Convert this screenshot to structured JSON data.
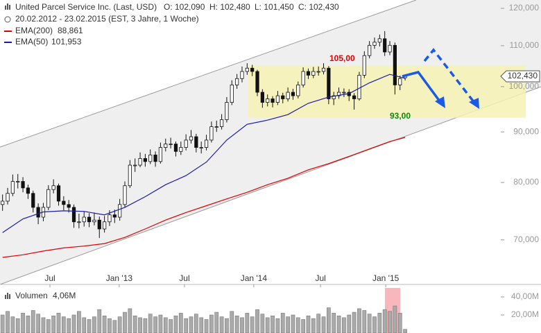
{
  "chart_data": {
    "type": "candlestick",
    "title": "United Parcel Service Inc. (Last, USD)",
    "ohlc_labels": [
      "O: 102,090",
      "H: 102,480",
      "L: 101,450",
      "C: 102,430"
    ],
    "subtitle": "20.02.2012 - 23.02.2015 (EST, 3 Jahre, 1 Woche)",
    "log_scale": true,
    "ylim": [
      63.1,
      122.35
    ],
    "yticks": [
      {
        "value": 120,
        "label": "120,000"
      },
      {
        "value": 110,
        "label": "110,000"
      },
      {
        "value": 100,
        "label": "100,000"
      },
      {
        "value": 90,
        "label": "90,000"
      },
      {
        "value": 80,
        "label": "80,000"
      },
      {
        "value": 70,
        "label": "70,000"
      }
    ],
    "xlim": [
      -0.5,
      97.5
    ],
    "xticks": [
      {
        "value": 9.3,
        "label": "Jul"
      },
      {
        "value": 22.9,
        "label": "Jan '13"
      },
      {
        "value": 35.7,
        "label": "Jul"
      },
      {
        "value": 49.3,
        "label": "Jan '14"
      },
      {
        "value": 62.4,
        "label": "Jul"
      },
      {
        "value": 75.2,
        "label": "Jan '15"
      }
    ],
    "current_price": {
      "value": 102.43,
      "label": "102,430"
    },
    "candles": [
      [
        76,
        77.8,
        74.9,
        76.6
      ],
      [
        76.6,
        79,
        76,
        78
      ],
      [
        78,
        81.5,
        77.5,
        80.2
      ],
      [
        80.2,
        81.6,
        78.9,
        80.2
      ],
      [
        80.2,
        81,
        78.2,
        79
      ],
      [
        79,
        79.6,
        77,
        78
      ],
      [
        78,
        78.5,
        74.6,
        75.5
      ],
      [
        75.5,
        76.2,
        72.6,
        73.8
      ],
      [
        73.8,
        76.3,
        73.1,
        75.5
      ],
      [
        75.5,
        79.5,
        75,
        78.7
      ],
      [
        78.7,
        80.6,
        78,
        79.4
      ],
      [
        79.4,
        79.8,
        75.8,
        76.6
      ],
      [
        76.6,
        77.5,
        75,
        76
      ],
      [
        76,
        76.8,
        74.6,
        75.5
      ],
      [
        75.5,
        76,
        72,
        73
      ],
      [
        73,
        74.4,
        71.9,
        73
      ],
      [
        73,
        74.8,
        72.2,
        73.8
      ],
      [
        73.8,
        74.5,
        72.1,
        73
      ],
      [
        73,
        74.6,
        72.4,
        73.3
      ],
      [
        73.3,
        73.9,
        70.3,
        71.8
      ],
      [
        71.8,
        74,
        71.2,
        73
      ],
      [
        73,
        75,
        72.3,
        74.2
      ],
      [
        74.2,
        75.1,
        72.8,
        73.8
      ],
      [
        73.8,
        77,
        73.2,
        76
      ],
      [
        76,
        80.2,
        75.5,
        79.4
      ],
      [
        79.4,
        84.3,
        79,
        83.3
      ],
      [
        83.3,
        84.6,
        82,
        83.3
      ],
      [
        83.3,
        85.8,
        82.9,
        84.6
      ],
      [
        84.6,
        85.5,
        83,
        84
      ],
      [
        84,
        86.4,
        83.5,
        85.3
      ],
      [
        85.3,
        86,
        83,
        84
      ],
      [
        84,
        87.8,
        83.6,
        86.8
      ],
      [
        86.8,
        88.6,
        86,
        87.5
      ],
      [
        87.5,
        88.8,
        86.6,
        87.5
      ],
      [
        87.5,
        88,
        85,
        86
      ],
      [
        86,
        88,
        85.3,
        86.8
      ],
      [
        86.8,
        89.5,
        86.2,
        88.3
      ],
      [
        88.3,
        90.4,
        87.6,
        89
      ],
      [
        89,
        89.6,
        85.8,
        86.8
      ],
      [
        86.8,
        88,
        85.6,
        86.8
      ],
      [
        86.8,
        89.4,
        86.2,
        88.3
      ],
      [
        88.3,
        92.2,
        87.8,
        91.1
      ],
      [
        91.1,
        92.4,
        90,
        91.1
      ],
      [
        91.1,
        93.8,
        90.5,
        92.6
      ],
      [
        92.6,
        97.6,
        92,
        96.4
      ],
      [
        96.4,
        101.5,
        95.8,
        100.4
      ],
      [
        100.4,
        103,
        99.5,
        101.9
      ],
      [
        101.9,
        104.8,
        101,
        103.6
      ],
      [
        103.6,
        105.6,
        102.8,
        104.4
      ],
      [
        104.4,
        105.2,
        102.5,
        103.6
      ],
      [
        103.6,
        104,
        97.8,
        98.7
      ],
      [
        98.7,
        99.4,
        95.2,
        96.4
      ],
      [
        96.4,
        98.2,
        95.5,
        97.2
      ],
      [
        97.2,
        97.8,
        95.3,
        96.4
      ],
      [
        96.4,
        99,
        95.8,
        97.9
      ],
      [
        97.9,
        98.6,
        96.2,
        97.2
      ],
      [
        97.2,
        99.8,
        96.6,
        98.7
      ],
      [
        98.7,
        99.5,
        97,
        97.9
      ],
      [
        97.9,
        101.2,
        97.3,
        100.4
      ],
      [
        100.4,
        104.6,
        99.8,
        103.6
      ],
      [
        103.6,
        104.3,
        101.8,
        102.7
      ],
      [
        102.7,
        104.7,
        102,
        103.6
      ],
      [
        103.6,
        104.8,
        102.6,
        103.6
      ],
      [
        103.6,
        105.6,
        102.9,
        104.4
      ],
      [
        104.4,
        104.9,
        96,
        97.2
      ],
      [
        97.2,
        98.8,
        95.8,
        97.9
      ],
      [
        97.9,
        99.8,
        97.2,
        98.7
      ],
      [
        98.7,
        99.6,
        97.6,
        98.7
      ],
      [
        98.7,
        99.4,
        96.7,
        97.9
      ],
      [
        97.9,
        98.5,
        94.8,
        97.2
      ],
      [
        97.2,
        103.5,
        96.8,
        102.7
      ],
      [
        102.7,
        108.6,
        102,
        107.5
      ],
      [
        107.5,
        111.2,
        106.8,
        110.1
      ],
      [
        110.1,
        112.1,
        109.2,
        110.9
      ],
      [
        110.9,
        112.9,
        109.8,
        111.8
      ],
      [
        111.8,
        113.8,
        107.4,
        108.4
      ],
      [
        108.4,
        111.2,
        107.6,
        110.1
      ],
      [
        110.1,
        110.8,
        98.2,
        100.4
      ],
      [
        100.4,
        102.6,
        99.2,
        101.9
      ],
      [
        102.09,
        102.48,
        101.45,
        102.43
      ]
    ],
    "series": [
      {
        "name": "EMA(200)",
        "last_label": "88,861",
        "color": "#e00000",
        "x": [
          0,
          4,
          8,
          12,
          16,
          20,
          24,
          28,
          32,
          36,
          40,
          44,
          48,
          52,
          56,
          60,
          64,
          68,
          72,
          76,
          79
        ],
        "values": [
          67.2,
          67.6,
          68.2,
          68.7,
          69.0,
          69.4,
          70.4,
          71.8,
          73.3,
          74.6,
          75.8,
          77.0,
          78.2,
          79.6,
          80.8,
          82.4,
          83.6,
          85.0,
          86.5,
          88.0,
          88.861
        ]
      },
      {
        "name": "EMA(50)",
        "last_label": "101,953",
        "color": "#1a1aa8",
        "x": [
          0,
          4,
          8,
          12,
          16,
          20,
          24,
          28,
          32,
          36,
          40,
          44,
          48,
          52,
          56,
          60,
          64,
          68,
          72,
          76,
          79
        ],
        "values": [
          71.2,
          73.5,
          74.7,
          74.9,
          74.8,
          74.2,
          75.5,
          77.4,
          79.6,
          81.3,
          83.9,
          88.3,
          91.6,
          92.5,
          93.7,
          96.2,
          97.6,
          98.4,
          100.9,
          102.9,
          101.953
        ]
      }
    ],
    "zone": {
      "upper": 105,
      "lower": 93,
      "upper_label": "105,00",
      "lower_label": "93,00"
    },
    "volume": {
      "name": "Volumen",
      "value_label": "4,06M",
      "ylim": [
        0,
        50
      ],
      "yticks": [
        {
          "value": 40,
          "label": "40,00M"
        },
        {
          "value": 20,
          "label": "20,00M"
        }
      ],
      "values": [
        20,
        24,
        18,
        16,
        22,
        19,
        25,
        21,
        17,
        15,
        19,
        22,
        18,
        16,
        20,
        24,
        17,
        15,
        18,
        26,
        19,
        16,
        14,
        18,
        23,
        27,
        19,
        17,
        16,
        21,
        18,
        20,
        17,
        15,
        19,
        22,
        16,
        18,
        21,
        17,
        15,
        20,
        23,
        18,
        16,
        24,
        19,
        17,
        22,
        18,
        26,
        21,
        17,
        19,
        16,
        22,
        18,
        20,
        17,
        15,
        19,
        16,
        21,
        18,
        28,
        22,
        19,
        17,
        20,
        23,
        27,
        25,
        21,
        18,
        22,
        26,
        24,
        30,
        22,
        4.06
      ]
    }
  }
}
